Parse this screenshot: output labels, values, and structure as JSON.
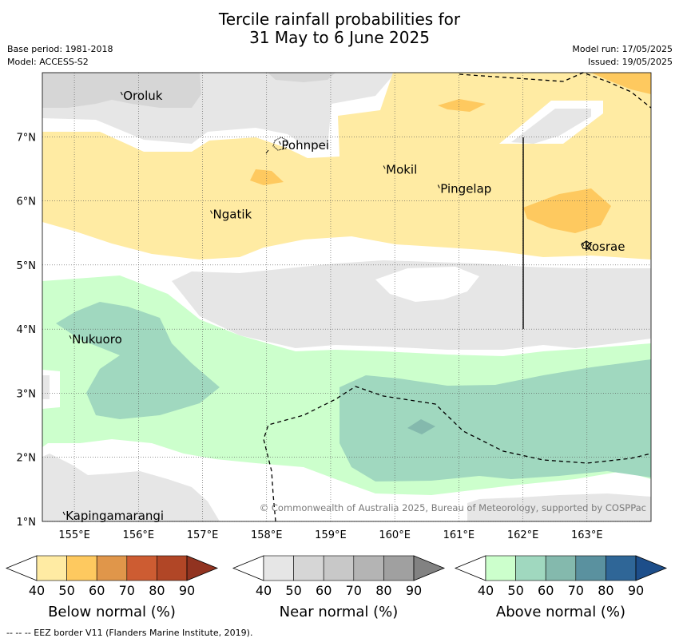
{
  "title": {
    "line1": "Tercile rainfall probabilities for",
    "line2": "31 May to 6 June 2025"
  },
  "meta": {
    "base_period": "Base period: 1981-2018",
    "model": "Model: ACCESS-S2",
    "model_run": "Model run: 17/05/2025",
    "issued": "Issued: 19/05/2025"
  },
  "map": {
    "lon_range": [
      154.5,
      164.0
    ],
    "lat_range": [
      1.0,
      8.0
    ],
    "lon_ticks": [
      "155°E",
      "156°E",
      "157°E",
      "158°E",
      "159°E",
      "160°E",
      "161°E",
      "162°E",
      "163°E"
    ],
    "lat_ticks": [
      "7°N",
      "6°N",
      "5°N",
      "4°N",
      "3°N",
      "2°N",
      "1°N"
    ],
    "places": [
      {
        "name": "Oroluk",
        "lon": 155.75,
        "lat": 7.65
      },
      {
        "name": "Pohnpei",
        "lon": 158.22,
        "lat": 6.88
      },
      {
        "name": "Mokil",
        "lon": 159.85,
        "lat": 6.5
      },
      {
        "name": "Pingelap",
        "lon": 160.7,
        "lat": 6.2
      },
      {
        "name": "Ngatik",
        "lon": 157.15,
        "lat": 5.8
      },
      {
        "name": "Kosrae",
        "lon": 162.95,
        "lat": 5.3
      },
      {
        "name": "Nukuoro",
        "lon": 154.95,
        "lat": 3.85
      },
      {
        "name": "Kapingamarangi",
        "lon": 154.85,
        "lat": 1.1
      }
    ],
    "credit": "© Commonwealth of Australia 2025, Bureau of Meteorology, supported by COSPPac"
  },
  "colors": {
    "below": [
      "#ffeba3",
      "#fec95f",
      "#e0964a",
      "#cd5c32",
      "#b14626",
      "#913320"
    ],
    "near": [
      "#e6e6e6",
      "#d6d6d6",
      "#c8c8c8",
      "#b4b4b4",
      "#a0a0a0",
      "#828282"
    ],
    "above": [
      "#ccffcc",
      "#a0d8bf",
      "#84b9ad",
      "#5a919f",
      "#2f6697",
      "#1d4e8a"
    ]
  },
  "colorbars": [
    {
      "key": "below",
      "label": "Below normal (%)",
      "ticks": [
        "40",
        "50",
        "60",
        "70",
        "80",
        "90"
      ]
    },
    {
      "key": "near",
      "label": "Near normal (%)",
      "ticks": [
        "40",
        "50",
        "60",
        "70",
        "80",
        "90"
      ]
    },
    {
      "key": "above",
      "label": "Above normal (%)",
      "ticks": [
        "40",
        "50",
        "60",
        "70",
        "80",
        "90"
      ]
    }
  ],
  "footnote": "--  --  -- EEZ border V11 (Flanders Marine Institute, 2019)."
}
